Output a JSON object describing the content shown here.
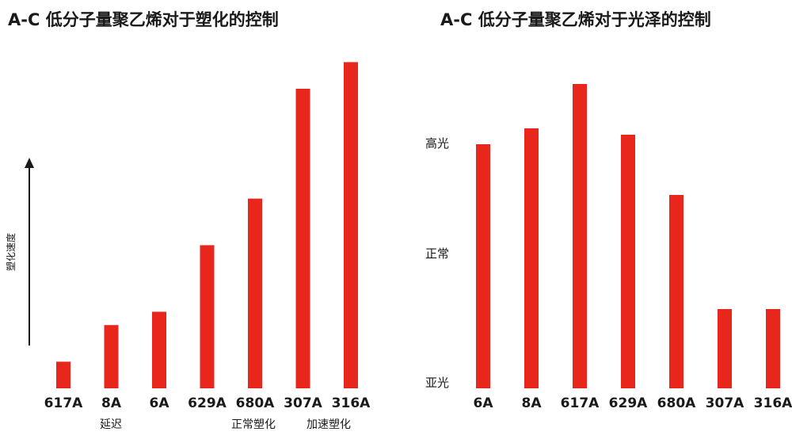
{
  "chart_data": [
    {
      "type": "bar",
      "title": "A-C 低分子量聚乙烯对于塑化的控制",
      "ylabel": "塑化速度",
      "ylim": [
        0,
        100
      ],
      "grid": false,
      "categories": [
        "617A",
        "8A",
        "6A",
        "629A",
        "680A",
        "307A",
        "316A"
      ],
      "values": [
        8,
        19,
        23,
        43,
        57,
        90,
        98
      ],
      "bar_color": "#e8261c",
      "annotations": [
        "延迟",
        "正常塑化",
        "加速塑化"
      ]
    },
    {
      "type": "bar",
      "title": "A-C 低分子量聚乙烯对于光泽的控制",
      "ylabel": "",
      "ylim": [
        0,
        100
      ],
      "grid": false,
      "categories": [
        "6A",
        "8A",
        "617A",
        "629A",
        "680A",
        "307A",
        "316A"
      ],
      "values": [
        77,
        82,
        96,
        80,
        61,
        25,
        25
      ],
      "bar_color": "#e8261c",
      "ytick_labels": [
        "高光",
        "正常",
        "亚光"
      ]
    }
  ]
}
